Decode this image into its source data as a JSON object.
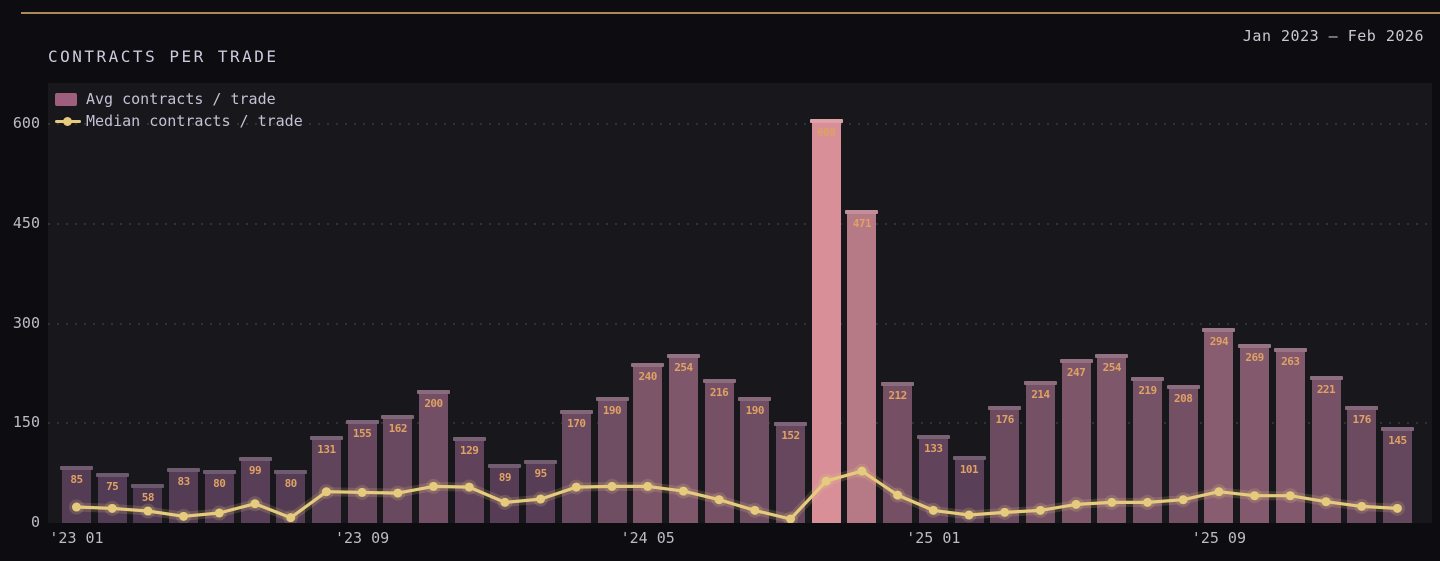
{
  "header": {
    "date_range": "Jan 2023 — Feb 2026"
  },
  "title": "CONTRACTS PER TRADE",
  "legend": [
    {
      "label": "Avg contracts / trade",
      "type": "bar",
      "color": "#9d5f7d"
    },
    {
      "label": "Median contracts / trade",
      "type": "line",
      "color": "#e6ca7e"
    }
  ],
  "chart_data": {
    "type": "bar",
    "title": "CONTRACTS PER TRADE",
    "subtitle": "Jan 2023 — Feb 2026",
    "categories": [
      "2023-01",
      "2023-02",
      "2023-03",
      "2023-04",
      "2023-05",
      "2023-06",
      "2023-07",
      "2023-08",
      "2023-09",
      "2023-10",
      "2023-11",
      "2023-12",
      "2024-01",
      "2024-02",
      "2024-03",
      "2024-04",
      "2024-05",
      "2024-06",
      "2024-07",
      "2024-08",
      "2024-09",
      "2024-10",
      "2024-11",
      "2024-12",
      "2025-01",
      "2025-02",
      "2025-03",
      "2025-04",
      "2025-05",
      "2025-06",
      "2025-07",
      "2025-08",
      "2025-09",
      "2025-10",
      "2025-11",
      "2025-12",
      "2026-01",
      "2026-02"
    ],
    "series": [
      {
        "name": "Avg contracts / trade",
        "type": "bar",
        "values": [
          85,
          75,
          58,
          83,
          80,
          99,
          80,
          131,
          155,
          162,
          200,
          129,
          89,
          95,
          170,
          190,
          240,
          254,
          216,
          190,
          152,
          608,
          471,
          212,
          133,
          101,
          176,
          214,
          247,
          254,
          219,
          208,
          294,
          269,
          263,
          221,
          176,
          145
        ]
      },
      {
        "name": "Median contracts / trade",
        "type": "line",
        "values": [
          21,
          19,
          15,
          7,
          12,
          26,
          5,
          44,
          43,
          42,
          52,
          51,
          28,
          33,
          51,
          52,
          52,
          45,
          32,
          16,
          3,
          60,
          75,
          39,
          16,
          9,
          13,
          16,
          25,
          28,
          28,
          32,
          44,
          38,
          38,
          29,
          22,
          19
        ]
      }
    ],
    "ylim": [
      0,
      650
    ],
    "yticks": [
      "0",
      "150",
      "300",
      "450",
      "600"
    ],
    "xticks": [
      {
        "index": 0,
        "label": "'23 01"
      },
      {
        "index": 8,
        "label": "'23 09"
      },
      {
        "index": 16,
        "label": "'24 05"
      },
      {
        "index": 24,
        "label": "'25 01"
      },
      {
        "index": 32,
        "label": "'25 09"
      }
    ],
    "grid": "horizontal-dotted",
    "legend_position": "top-left",
    "colors": {
      "bar_low": "#3f2f4a",
      "bar_high": "#d98f98",
      "line": "#e6ca7e",
      "bar_value_label": "#e0a164",
      "axis_text": "#bcbcc6",
      "background": "#0d0d11",
      "plot_background": "#17171c",
      "top_rule": "#ab8a58"
    }
  }
}
